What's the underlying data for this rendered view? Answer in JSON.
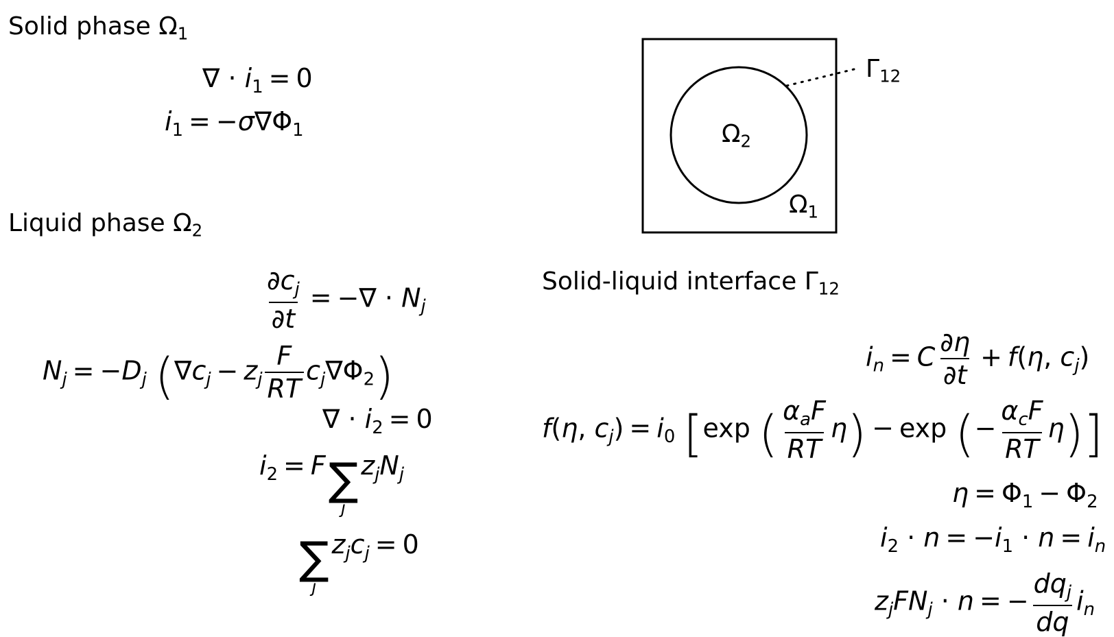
{
  "headings": {
    "solid": "Solid phase Ω",
    "solid_sub": "1",
    "liquid": "Liquid phase Ω",
    "liquid_sub": "2",
    "interface": "Solid-liquid interface Γ",
    "interface_sub": "12"
  },
  "figure": {
    "outer_label": "Ω",
    "outer_sub": "1",
    "inner_label": "Ω",
    "inner_sub": "2",
    "boundary_label": "Γ",
    "boundary_sub": "12"
  },
  "symbols": {
    "exp": "exp"
  }
}
